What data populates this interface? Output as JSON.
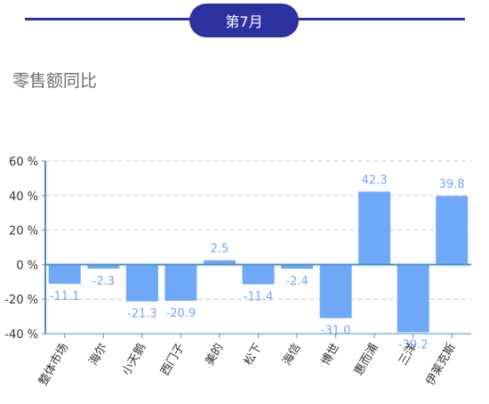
{
  "header": {
    "period_label": "第7月"
  },
  "section": {
    "title": "零售额同比"
  },
  "chart_data": {
    "type": "bar",
    "title": "",
    "xlabel": "",
    "ylabel": "",
    "categories": [
      "整体市场",
      "海尔",
      "小天鹅",
      "西门子",
      "美的",
      "松下",
      "海信",
      "博世",
      "惠而浦",
      "三洋",
      "伊莱克斯"
    ],
    "values": [
      -11.1,
      -2.3,
      -21.3,
      -20.9,
      2.5,
      -11.4,
      -2.4,
      -31.0,
      42.3,
      -39.2,
      39.8
    ],
    "value_labels": [
      "-11.1",
      "-2.3",
      "-21.3",
      "-20.9",
      "2.5",
      "-11.4",
      "-2.4",
      "-31.0",
      "42.3",
      "-39.2",
      "39.8"
    ],
    "ylim": [
      -40,
      60
    ],
    "yticks": [
      -40,
      -20,
      0,
      20,
      40,
      60
    ],
    "ytick_labels": [
      "-40 %",
      "-20 %",
      "0 %",
      "20 %",
      "40 %",
      "60 %"
    ],
    "grid": true,
    "legend": "none",
    "colors": {
      "bar": "#6fa8f7",
      "axis": "#4a90c8",
      "zero_line": "#4a90c8",
      "grid": "#cccccc",
      "label": "#6fa8f7",
      "tick_text": "#333333"
    }
  }
}
